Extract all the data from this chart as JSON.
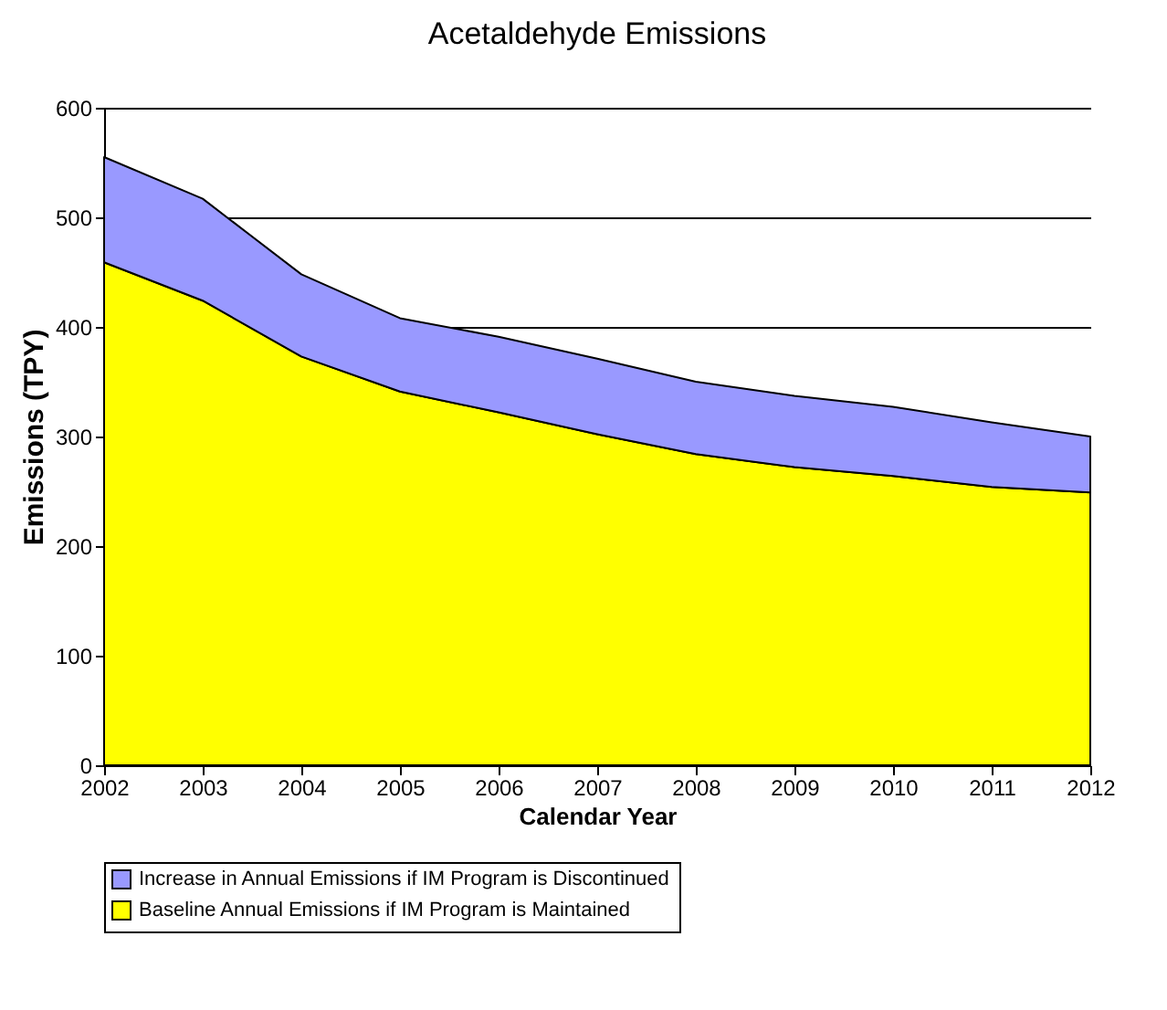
{
  "chart_data": {
    "type": "area",
    "title": "Acetaldehyde Emissions",
    "xlabel": "Calendar Year",
    "ylabel": "Emissions (TPY)",
    "x": [
      2002,
      2003,
      2004,
      2005,
      2006,
      2007,
      2008,
      2009,
      2010,
      2011,
      2012
    ],
    "stacked": true,
    "series": [
      {
        "name": "Baseline Annual Emissions if IM Program is Maintained",
        "color": "#ffff00",
        "values": [
          459,
          424,
          373,
          341,
          322,
          302,
          284,
          272,
          264,
          254,
          249
        ]
      },
      {
        "name": "Increase in Annual Emissions if IM Program is Discontinued",
        "color": "#9999ff",
        "values": [
          96,
          93,
          75,
          67,
          69,
          69,
          66,
          65,
          63,
          59,
          51
        ]
      }
    ],
    "xlim": [
      2002,
      2012
    ],
    "xticks": [
      2002,
      2003,
      2004,
      2005,
      2006,
      2007,
      2008,
      2009,
      2010,
      2011,
      2012
    ],
    "ylim": [
      0,
      600
    ],
    "yticks": [
      0,
      100,
      200,
      300,
      400,
      500,
      600
    ],
    "grid": "y",
    "legend": "bottom"
  }
}
